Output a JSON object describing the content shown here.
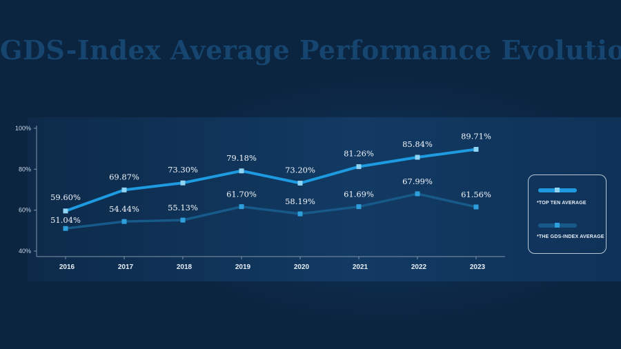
{
  "title": "GDS-Index Average Performance Evolution",
  "chart_data": {
    "type": "line",
    "title": "GDS-Index Average Performance Evolution",
    "categories": [
      "2016",
      "2017",
      "2018",
      "2019",
      "2020",
      "2021",
      "2022",
      "2023"
    ],
    "yticks": [
      "100%",
      "80%",
      "60%",
      "40%"
    ],
    "ylim": [
      40,
      100
    ],
    "series": [
      {
        "name": "*TOP TEN AVERAGE",
        "color": "#1e9be0",
        "marker": "#8fd3f5",
        "values": [
          59.6,
          69.87,
          73.3,
          79.18,
          73.2,
          81.26,
          85.84,
          89.71
        ],
        "labels": [
          "59.60%",
          "69.87%",
          "73.30%",
          "79.18%",
          "73.20%",
          "81.26%",
          "85.84%",
          "89.71%"
        ]
      },
      {
        "name": "*THE GDS-INDEX AVERAGE",
        "color": "#175a8a",
        "marker": "#2f9fdc",
        "values": [
          51.04,
          54.44,
          55.13,
          61.7,
          58.19,
          61.69,
          67.99,
          61.56
        ],
        "labels": [
          "51.04%",
          "54.44%",
          "55.13%",
          "61.70%",
          "58.19%",
          "61.69%",
          "67.99%",
          "61.56%"
        ]
      }
    ],
    "legend_position": "right"
  }
}
